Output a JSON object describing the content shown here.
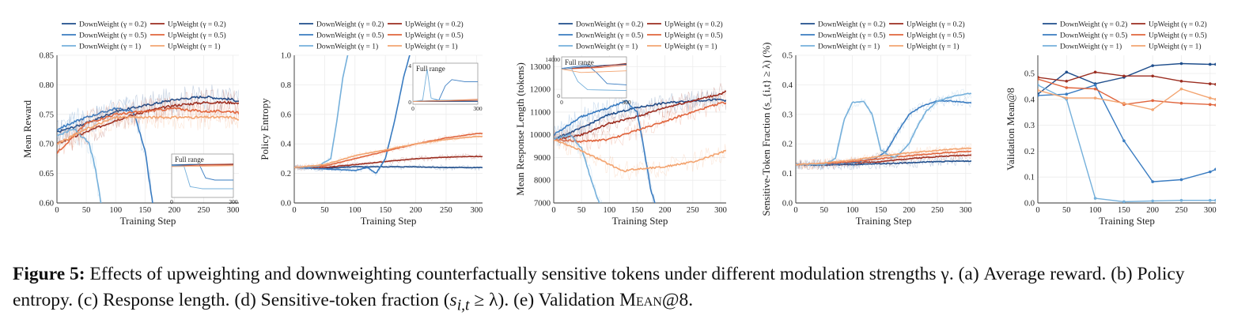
{
  "figure": {
    "caption": {
      "label": "Figure 5:",
      "text_1": " Effects of upweighting and downweighting counterfactually sensitive tokens under different modulation strengths γ. (a) Average reward. (b) Policy entropy. (c) Response length. (d) Sensitive-token fraction (",
      "math_1": "s",
      "math_1_sub": "i,t",
      "text_2": " ≥ λ). (e) Validation ",
      "text_3": "Mean@8",
      "text_4": "."
    },
    "legend": [
      {
        "name": "DownWeight (γ = 0.2)",
        "color": "#1f4e8c"
      },
      {
        "name": "UpWeight (γ = 0.2)",
        "color": "#9b2d20"
      },
      {
        "name": "DownWeight (γ = 0.5)",
        "color": "#3a7cc1"
      },
      {
        "name": "UpWeight (γ = 0.5)",
        "color": "#e0643c"
      },
      {
        "name": "DownWeight (γ = 1)",
        "color": "#75b0db"
      },
      {
        "name": "UpWeight (γ = 1)",
        "color": "#f3a470"
      }
    ],
    "inset_label": "Full range"
  },
  "chart_data": [
    {
      "type": "line",
      "xlabel": "Training Step",
      "ylabel": "Mean Reward",
      "xlim": [
        0,
        310
      ],
      "ylim": [
        0.6,
        0.85
      ],
      "xticks": [
        0,
        50,
        100,
        150,
        200,
        250,
        300
      ],
      "yticks": [
        0.6,
        0.65,
        0.7,
        0.75,
        0.8,
        0.85
      ],
      "inset": {
        "label": "Full range",
        "xticks": [
          0,
          300
        ]
      },
      "series": [
        {
          "name": "DownWeight (γ = 0.2)",
          "x": [
            0,
            50,
            100,
            150,
            200,
            250,
            300,
            310
          ],
          "y": [
            0.72,
            0.735,
            0.755,
            0.765,
            0.775,
            0.78,
            0.775,
            0.772
          ]
        },
        {
          "name": "UpWeight (γ = 0.2)",
          "x": [
            0,
            50,
            100,
            150,
            200,
            250,
            300,
            310
          ],
          "y": [
            0.7,
            0.72,
            0.74,
            0.755,
            0.765,
            0.77,
            0.77,
            0.768
          ]
        },
        {
          "name": "DownWeight (γ = 0.5)",
          "x": [
            0,
            50,
            100,
            130,
            150,
            160,
            170
          ],
          "y": [
            0.725,
            0.745,
            0.76,
            0.755,
            0.69,
            0.62,
            0.55
          ]
        },
        {
          "name": "UpWeight (γ = 0.5)",
          "x": [
            0,
            50,
            100,
            150,
            200,
            250,
            300,
            310
          ],
          "y": [
            0.685,
            0.735,
            0.75,
            0.755,
            0.76,
            0.755,
            0.755,
            0.752
          ]
        },
        {
          "name": "DownWeight (γ = 1)",
          "x": [
            0,
            30,
            55,
            65,
            75,
            85
          ],
          "y": [
            0.715,
            0.725,
            0.7,
            0.66,
            0.6,
            0.55
          ]
        },
        {
          "name": "UpWeight (γ = 1)",
          "x": [
            0,
            50,
            100,
            150,
            200,
            250,
            300,
            310
          ],
          "y": [
            0.7,
            0.725,
            0.745,
            0.745,
            0.745,
            0.745,
            0.745,
            0.74
          ]
        }
      ]
    },
    {
      "type": "line",
      "xlabel": "Training Step",
      "ylabel": "Policy Entropy",
      "xlim": [
        0,
        310
      ],
      "ylim": [
        0,
        1
      ],
      "xticks": [
        0,
        50,
        100,
        150,
        200,
        250,
        300
      ],
      "yticks": [
        0,
        0.2,
        0.4,
        0.6,
        0.8,
        1
      ],
      "inset": {
        "label": "Full range",
        "yticks": [
          0,
          4
        ],
        "xticks": [
          0,
          300
        ]
      },
      "series": [
        {
          "name": "DownWeight (γ = 0.2)",
          "x": [
            0,
            50,
            100,
            150,
            200,
            250,
            300,
            310
          ],
          "y": [
            0.24,
            0.235,
            0.245,
            0.245,
            0.245,
            0.24,
            0.24,
            0.24
          ]
        },
        {
          "name": "UpWeight (γ = 0.2)",
          "x": [
            0,
            50,
            100,
            150,
            200,
            250,
            300,
            310
          ],
          "y": [
            0.24,
            0.24,
            0.26,
            0.28,
            0.3,
            0.31,
            0.315,
            0.315
          ]
        },
        {
          "name": "DownWeight (γ = 0.5)",
          "x": [
            0,
            50,
            100,
            120,
            135,
            150,
            165,
            180,
            190,
            200
          ],
          "y": [
            0.24,
            0.23,
            0.22,
            0.24,
            0.2,
            0.3,
            0.55,
            0.85,
            1,
            1.2
          ]
        },
        {
          "name": "UpWeight (γ = 0.5)",
          "x": [
            0,
            50,
            100,
            150,
            200,
            250,
            300,
            310
          ],
          "y": [
            0.24,
            0.25,
            0.3,
            0.35,
            0.4,
            0.44,
            0.47,
            0.47
          ]
        },
        {
          "name": "DownWeight (γ = 1)",
          "x": [
            0,
            40,
            60,
            70,
            80,
            88,
            95
          ],
          "y": [
            0.24,
            0.25,
            0.3,
            0.55,
            0.85,
            1,
            1.2
          ]
        },
        {
          "name": "UpWeight (γ = 1)",
          "x": [
            0,
            50,
            100,
            150,
            200,
            250,
            300,
            310
          ],
          "y": [
            0.24,
            0.26,
            0.32,
            0.36,
            0.4,
            0.43,
            0.45,
            0.45
          ]
        }
      ]
    },
    {
      "type": "line",
      "xlabel": "Training Step",
      "ylabel": "Mean Response Length (tokens)",
      "xlim": [
        0,
        310
      ],
      "ylim": [
        7000,
        13500
      ],
      "xticks": [
        0,
        50,
        100,
        150,
        200,
        250,
        300
      ],
      "yticks": [
        7000,
        8000,
        9000,
        10000,
        11000,
        12000,
        13000
      ],
      "inset": {
        "label": "Full range",
        "yticks": [
          0,
          14000
        ],
        "xticks": [
          0,
          300
        ]
      },
      "series": [
        {
          "name": "DownWeight (γ = 0.2)",
          "x": [
            0,
            50,
            100,
            150,
            200,
            250,
            300,
            310
          ],
          "y": [
            9800,
            10300,
            10900,
            11200,
            11400,
            11500,
            11550,
            11500
          ]
        },
        {
          "name": "UpWeight (γ = 0.2)",
          "x": [
            0,
            50,
            100,
            150,
            200,
            250,
            300,
            310
          ],
          "y": [
            9800,
            10000,
            10500,
            10800,
            11200,
            11500,
            11800,
            11900
          ]
        },
        {
          "name": "DownWeight (γ = 0.5)",
          "x": [
            0,
            50,
            100,
            130,
            150,
            165,
            175,
            185
          ],
          "y": [
            10000,
            10800,
            11200,
            11500,
            11000,
            9000,
            7500,
            6800
          ]
        },
        {
          "name": "UpWeight (γ = 0.5)",
          "x": [
            0,
            50,
            100,
            150,
            200,
            250,
            300,
            310
          ],
          "y": [
            9800,
            9700,
            9800,
            10200,
            10600,
            11000,
            11400,
            11400
          ]
        },
        {
          "name": "DownWeight (γ = 1)",
          "x": [
            0,
            30,
            50,
            60,
            70,
            80,
            90
          ],
          "y": [
            9800,
            10000,
            9400,
            8600,
            7800,
            7100,
            6700
          ]
        },
        {
          "name": "UpWeight (γ = 1)",
          "x": [
            0,
            50,
            100,
            125,
            150,
            200,
            250,
            300,
            310
          ],
          "y": [
            9800,
            9300,
            8700,
            8400,
            8500,
            8600,
            8800,
            9200,
            9300
          ]
        }
      ]
    },
    {
      "type": "line",
      "xlabel": "Training Step",
      "ylabel": "Sensitive-Token Fraction (s_{i,t} ≥ λ) (%)",
      "xlim": [
        0,
        310
      ],
      "ylim": [
        0,
        0.5
      ],
      "xticks": [
        0,
        50,
        100,
        150,
        200,
        250,
        300
      ],
      "yticks": [
        0,
        0.1,
        0.2,
        0.3,
        0.4,
        0.5
      ],
      "series": [
        {
          "name": "DownWeight (γ = 0.2)",
          "x": [
            0,
            50,
            100,
            150,
            200,
            250,
            300,
            310
          ],
          "y": [
            0.13,
            0.128,
            0.13,
            0.133,
            0.136,
            0.14,
            0.142,
            0.142
          ]
        },
        {
          "name": "UpWeight (γ = 0.2)",
          "x": [
            0,
            50,
            100,
            150,
            200,
            250,
            300,
            310
          ],
          "y": [
            0.13,
            0.13,
            0.135,
            0.14,
            0.15,
            0.157,
            0.162,
            0.162
          ]
        },
        {
          "name": "DownWeight (γ = 0.5)",
          "x": [
            0,
            50,
            100,
            140,
            160,
            180,
            200,
            225,
            250,
            275,
            300,
            310
          ],
          "y": [
            0.13,
            0.13,
            0.135,
            0.15,
            0.175,
            0.24,
            0.3,
            0.33,
            0.345,
            0.345,
            0.34,
            0.34
          ]
        },
        {
          "name": "UpWeight (γ = 0.5)",
          "x": [
            0,
            50,
            100,
            150,
            200,
            250,
            300,
            310
          ],
          "y": [
            0.13,
            0.133,
            0.14,
            0.15,
            0.16,
            0.168,
            0.175,
            0.175
          ]
        },
        {
          "name": "DownWeight (γ = 1)",
          "x": [
            0,
            50,
            70,
            85,
            100,
            120,
            135,
            150,
            165,
            175,
            185,
            200,
            215,
            230,
            250,
            275,
            300,
            310
          ],
          "y": [
            0.13,
            0.13,
            0.15,
            0.28,
            0.34,
            0.345,
            0.3,
            0.18,
            0.16,
            0.155,
            0.17,
            0.2,
            0.26,
            0.31,
            0.345,
            0.36,
            0.37,
            0.37
          ]
        },
        {
          "name": "UpWeight (γ = 1)",
          "x": [
            0,
            50,
            100,
            150,
            200,
            250,
            300,
            310
          ],
          "y": [
            0.13,
            0.135,
            0.145,
            0.158,
            0.17,
            0.178,
            0.185,
            0.185
          ]
        }
      ]
    },
    {
      "type": "line",
      "xlabel": "Training Step",
      "ylabel": "Validation Mean@8",
      "xlim": [
        0,
        310
      ],
      "ylim": [
        0,
        0.57
      ],
      "xticks": [
        0,
        50,
        100,
        150,
        200,
        250,
        300
      ],
      "yticks": [
        0,
        0.1,
        0.2,
        0.3,
        0.4,
        0.5
      ],
      "series": [
        {
          "name": "DownWeight (γ = 0.2)",
          "x": [
            0,
            50,
            100,
            150,
            200,
            250,
            300,
            310
          ],
          "y": [
            0.42,
            0.505,
            0.46,
            0.485,
            0.53,
            0.538,
            0.535,
            0.535
          ]
        },
        {
          "name": "UpWeight (γ = 0.2)",
          "x": [
            0,
            50,
            100,
            150,
            200,
            250,
            300,
            310
          ],
          "y": [
            0.485,
            0.47,
            0.505,
            0.49,
            0.49,
            0.47,
            0.46,
            0.458
          ]
        },
        {
          "name": "DownWeight (γ = 0.5)",
          "x": [
            0,
            50,
            100,
            150,
            200,
            250,
            300,
            310
          ],
          "y": [
            0.415,
            0.42,
            0.455,
            0.24,
            0.082,
            0.09,
            0.12,
            0.13
          ]
        },
        {
          "name": "UpWeight (γ = 0.5)",
          "x": [
            0,
            50,
            100,
            150,
            200,
            250,
            300,
            310
          ],
          "y": [
            0.478,
            0.445,
            0.44,
            0.38,
            0.395,
            0.385,
            0.38,
            0.378
          ]
        },
        {
          "name": "DownWeight (γ = 1)",
          "x": [
            0,
            50,
            100,
            150,
            200,
            250,
            300,
            310
          ],
          "y": [
            0.455,
            0.4,
            0.018,
            0.005,
            0.008,
            0.01,
            0.01,
            0.01
          ]
        },
        {
          "name": "UpWeight (γ = 1)",
          "x": [
            0,
            50,
            100,
            150,
            200,
            250,
            300,
            310
          ],
          "y": [
            0.435,
            0.405,
            0.405,
            0.385,
            0.36,
            0.44,
            0.405,
            0.4
          ]
        }
      ]
    }
  ]
}
